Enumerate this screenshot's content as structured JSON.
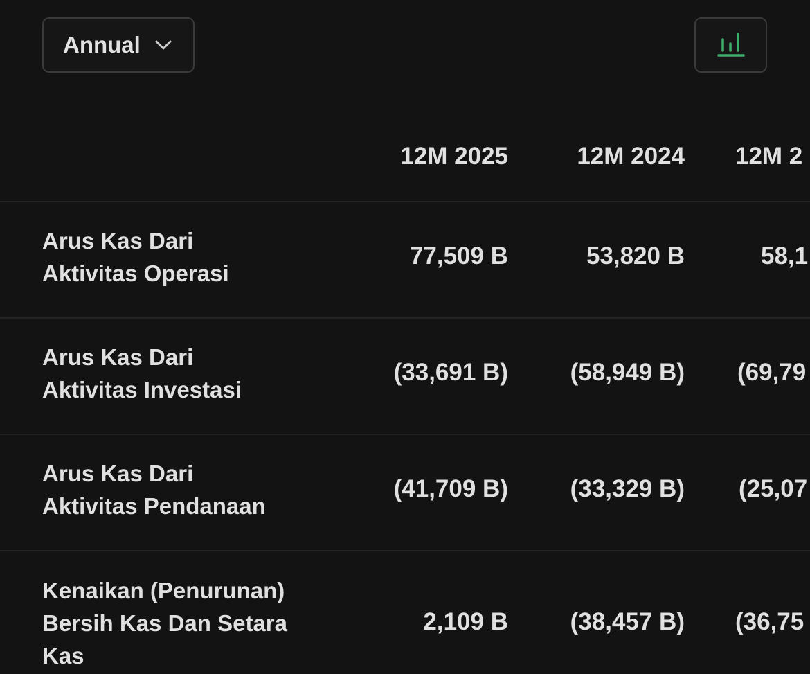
{
  "controls": {
    "period_label": "Annual",
    "chevron_icon": "chevron-down-icon",
    "chart_icon": "bar-chart-icon",
    "accent_color": "#3fae6a"
  },
  "table": {
    "columns": [
      "12M 2025",
      "12M 2024",
      "12M 2"
    ],
    "rows": [
      {
        "label_lines": [
          "Arus Kas Dari",
          "Aktivitas Operasi"
        ],
        "values": [
          "77,509 B",
          "53,820 B",
          "58,1"
        ]
      },
      {
        "label_lines": [
          "Arus Kas Dari",
          "Aktivitas Investasi"
        ],
        "values": [
          "(33,691 B)",
          "(58,949 B)",
          "(69,79"
        ]
      },
      {
        "label_lines": [
          "Arus Kas Dari",
          "Aktivitas Pendanaan"
        ],
        "values": [
          "(41,709 B)",
          "(33,329 B)",
          "(25,07"
        ]
      },
      {
        "label_lines": [
          "Kenaikan (Penurunan)",
          "Bersih Kas Dan Setara",
          "Kas"
        ],
        "values": [
          "2,109 B",
          "(38,457 B)",
          "(36,75"
        ]
      }
    ]
  }
}
